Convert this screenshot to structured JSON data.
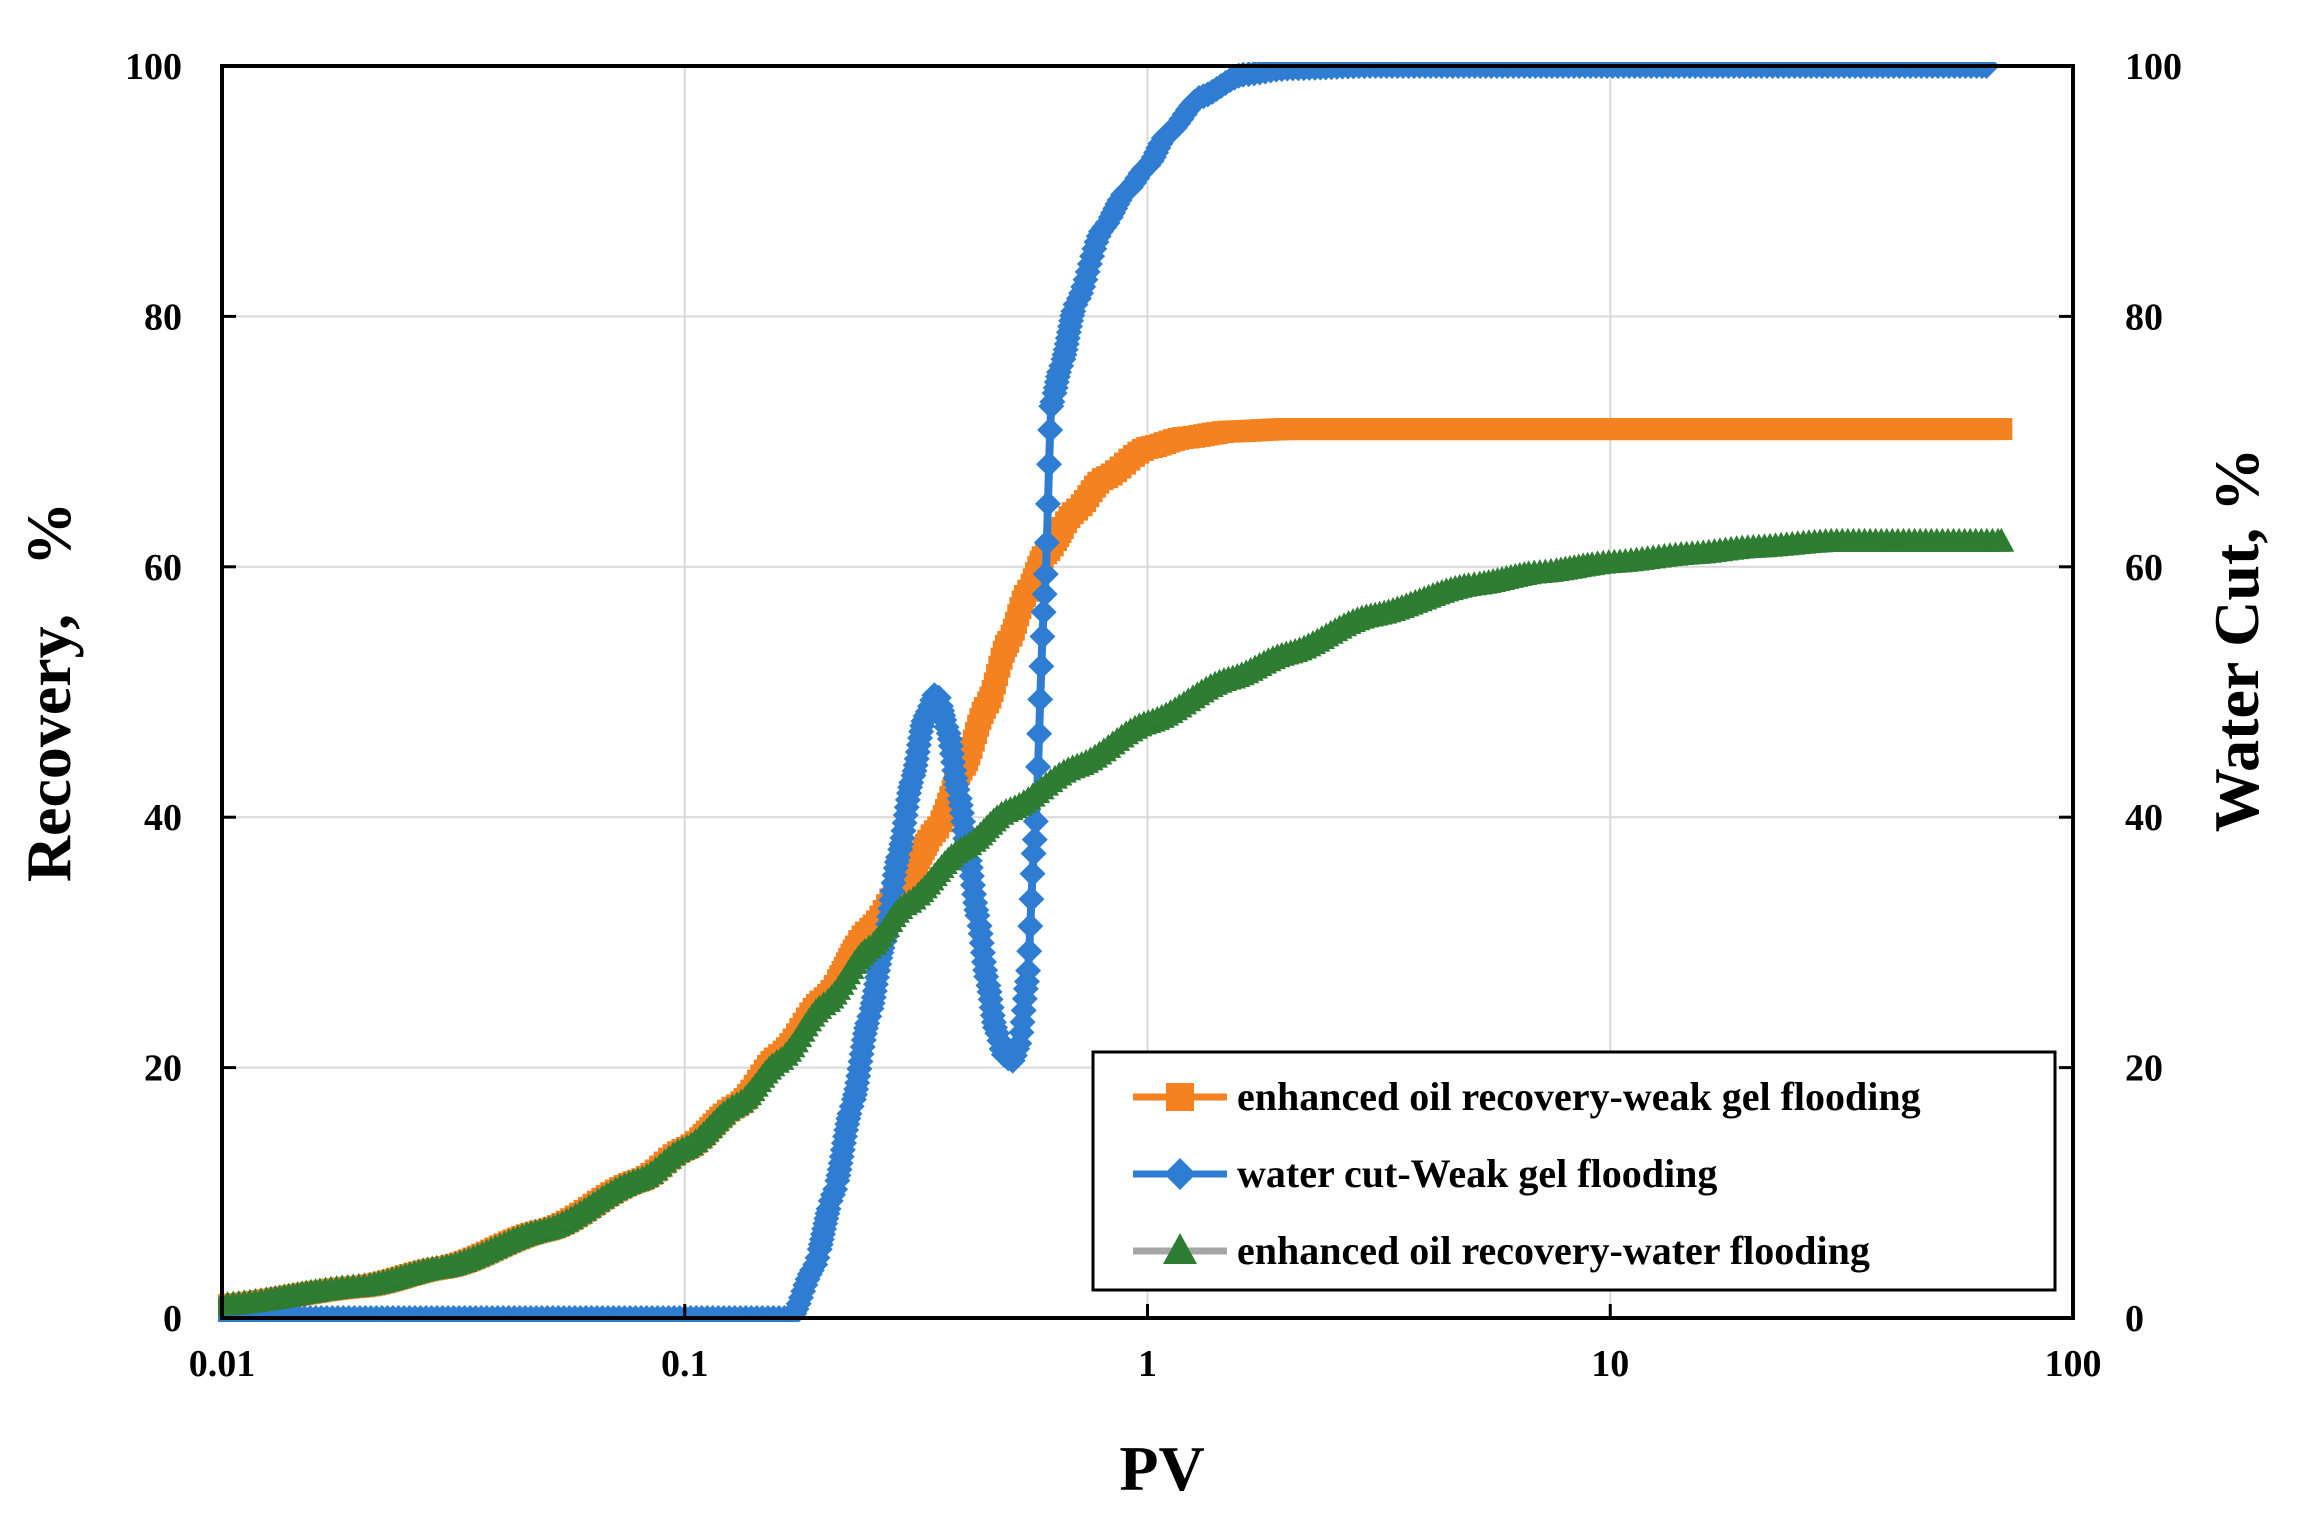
{
  "chart_data": {
    "type": "line",
    "x_scale": "log",
    "xlabel": "PV",
    "ylabel_left": "Recovery,   %",
    "ylabel_right": "Water Cut, %",
    "xlim": [
      0.01,
      100
    ],
    "ylim_left": [
      0,
      100
    ],
    "ylim_right": [
      0,
      100
    ],
    "x_ticks": [
      "0.01",
      "0.1",
      "1",
      "10",
      "100"
    ],
    "x_tick_values": [
      0.01,
      0.1,
      1,
      10,
      100
    ],
    "y_left_ticks": [
      "0",
      "20",
      "40",
      "60",
      "80",
      "100"
    ],
    "y_left_tick_values": [
      0,
      20,
      40,
      60,
      80,
      100
    ],
    "y_right_ticks": [
      "0",
      "20",
      "40",
      "60",
      "80",
      "100"
    ],
    "y_right_tick_values": [
      0,
      20,
      40,
      60,
      80,
      100
    ],
    "grid": true,
    "legend_position": "bottom-right",
    "series": [
      {
        "name": "enhanced oil recovery-weak gel flooding",
        "marker": "square",
        "color": "#F58220",
        "axis": "left",
        "x": [
          0.01,
          0.02,
          0.03,
          0.05,
          0.08,
          0.1,
          0.13,
          0.16,
          0.2,
          0.25,
          0.3,
          0.35,
          0.4,
          0.45,
          0.5,
          0.55,
          0.6,
          0.7,
          0.8,
          1.0,
          1.2,
          1.5,
          2,
          3,
          5,
          10,
          20,
          40,
          70
        ],
        "y": [
          1,
          2.5,
          4,
          7,
          11,
          13.5,
          17,
          21,
          25.5,
          31,
          35,
          39,
          44,
          49,
          54,
          58,
          61,
          64.5,
          67,
          69.5,
          70.3,
          70.8,
          71,
          71,
          71,
          71,
          71,
          71,
          71
        ]
      },
      {
        "name": "water cut-Weak gel flooding",
        "marker": "diamond",
        "color": "#2E7DD2",
        "axis": "right",
        "x": [
          0.01,
          0.05,
          0.1,
          0.15,
          0.17,
          0.19,
          0.21,
          0.23,
          0.25,
          0.27,
          0.29,
          0.31,
          0.33,
          0.35,
          0.37,
          0.39,
          0.41,
          0.43,
          0.45,
          0.47,
          0.49,
          0.51,
          0.53,
          0.55,
          0.57,
          0.6,
          0.62,
          0.65,
          0.7,
          0.8,
          0.9,
          1.0,
          1.1,
          1.3,
          1.6,
          2,
          3,
          5,
          10,
          20,
          40,
          65
        ],
        "y": [
          0,
          0,
          0,
          0,
          0,
          4,
          10,
          17,
          24,
          30,
          37,
          43,
          48,
          50,
          47,
          42,
          37,
          32,
          27,
          23,
          21,
          20.5,
          22,
          27,
          38,
          58,
          73,
          76,
          81,
          87,
          90,
          92,
          94.5,
          97.5,
          99.3,
          99.8,
          100,
          100,
          100,
          100,
          100,
          100
        ]
      },
      {
        "name": "enhanced oil recovery-water flooding",
        "marker": "triangle",
        "color": "#2E7D32",
        "axis": "left",
        "x": [
          0.01,
          0.02,
          0.03,
          0.05,
          0.08,
          0.1,
          0.13,
          0.16,
          0.2,
          0.25,
          0.3,
          0.4,
          0.5,
          0.7,
          1,
          1.5,
          2,
          3,
          5,
          7,
          10,
          15,
          20,
          30,
          50,
          70
        ],
        "y": [
          1,
          2.5,
          4,
          7,
          11,
          13.5,
          17,
          20.5,
          25,
          29.5,
          33,
          37.5,
          40.5,
          44,
          47.5,
          51,
          53,
          56,
          58.5,
          59.5,
          60.3,
          61,
          61.5,
          62,
          62,
          62
        ]
      }
    ]
  }
}
